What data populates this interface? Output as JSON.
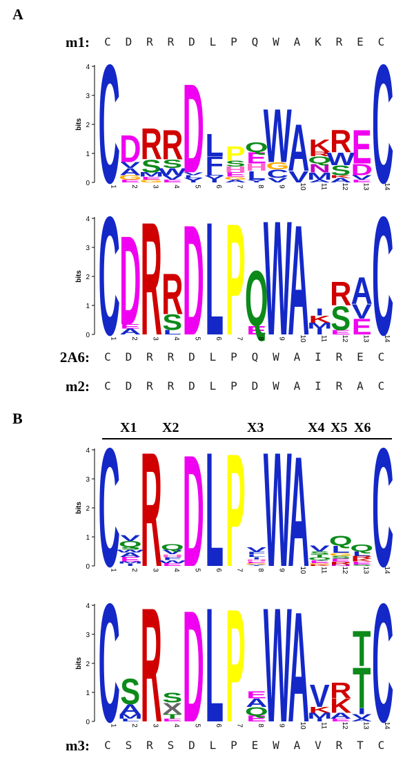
{
  "panels": {
    "a": "A",
    "b": "B"
  },
  "axis": {
    "label": "bits",
    "ticks": [
      "0",
      "1",
      "2",
      "3",
      "4"
    ]
  },
  "colors": {
    "C": "#1428c8",
    "W": "#1428c8",
    "A": "#1428c8",
    "V": "#1428c8",
    "I": "#1428c8",
    "M": "#1428c8",
    "L": "#1428c8",
    "F": "#1428c8",
    "Y": "#1428c8",
    "D": "#f000f0",
    "E": "#f000f0",
    "R": "#d00000",
    "K": "#d00000",
    "H": "#ff66cc",
    "N": "#c000c0",
    "Q": "#0c8a1a",
    "S": "#0c8a1a",
    "T": "#0c8a1a",
    "G": "#ffaa00",
    "P": "#ffff00"
  },
  "sequences": {
    "m1": {
      "label": "m1:",
      "residues": [
        "C",
        "D",
        "R",
        "R",
        "D",
        "L",
        "P",
        "Q",
        "W",
        "A",
        "K",
        "R",
        "E",
        "C"
      ]
    },
    "s2A6": {
      "label": "2A6:",
      "residues": [
        "C",
        "D",
        "R",
        "R",
        "D",
        "L",
        "P",
        "Q",
        "W",
        "A",
        "I",
        "R",
        "E",
        "C"
      ]
    },
    "m2": {
      "label": "m2:",
      "residues": [
        "C",
        "D",
        "R",
        "R",
        "D",
        "L",
        "P",
        "D",
        "W",
        "A",
        "I",
        "R",
        "A",
        "C"
      ]
    },
    "m3": {
      "label": "m3:",
      "residues": [
        "C",
        "S",
        "R",
        "S",
        "D",
        "L",
        "P",
        "E",
        "W",
        "A",
        "V",
        "R",
        "T",
        "C"
      ]
    }
  },
  "bracket": {
    "labels": [
      "X1",
      "X2",
      "X3",
      "X4",
      "X5",
      "X6"
    ]
  },
  "logos": [
    {
      "positions": [
        "1",
        "2",
        "3",
        "4",
        "5",
        "6",
        "7",
        "8",
        "9",
        "10",
        "11",
        "12",
        "13",
        "14"
      ],
      "stacks": [
        [
          [
            "C",
            4.2
          ]
        ],
        [
          [
            "E",
            0.1
          ],
          [
            "G",
            0.15
          ],
          [
            "A",
            0.25
          ],
          [
            "V",
            0.2
          ],
          [
            "D",
            0.95
          ]
        ],
        [
          [
            "G",
            0.1
          ],
          [
            "E",
            0.1
          ],
          [
            "M",
            0.15
          ],
          [
            "S",
            0.45
          ],
          [
            "R",
            1.1
          ]
        ],
        [
          [
            "E",
            0.1
          ],
          [
            "V",
            0.15
          ],
          [
            "W",
            0.25
          ],
          [
            "S",
            0.3
          ],
          [
            "R",
            1.05
          ]
        ],
        [
          [
            "Y",
            0.15
          ],
          [
            "L",
            0.1
          ],
          [
            "V",
            0.1
          ],
          [
            "D",
            3.15
          ]
        ],
        [
          [
            "I",
            0.12
          ],
          [
            "V",
            0.12
          ],
          [
            "L",
            0.12
          ],
          [
            "F",
            0.55
          ],
          [
            "L",
            0.8
          ]
        ],
        [
          [
            "A",
            0.1
          ],
          [
            "G",
            0.1
          ],
          [
            "E",
            0.15
          ],
          [
            "H",
            0.2
          ],
          [
            "S",
            0.2
          ],
          [
            "P",
            0.5
          ]
        ],
        [
          [
            "Y",
            0.1
          ],
          [
            "L",
            0.3
          ],
          [
            "H",
            0.25
          ],
          [
            "E",
            0.4
          ],
          [
            "Q",
            0.35
          ]
        ],
        [
          [
            "V",
            0.15
          ],
          [
            "C",
            0.3
          ],
          [
            "G",
            0.25
          ],
          [
            "W",
            1.9
          ]
        ],
        [
          [
            "V",
            0.4
          ],
          [
            "A",
            1.65
          ]
        ],
        [
          [
            "A",
            0.1
          ],
          [
            "M",
            0.25
          ],
          [
            "N",
            0.3
          ],
          [
            "Q",
            0.25
          ],
          [
            "R",
            0.15
          ],
          [
            "K",
            0.45
          ]
        ],
        [
          [
            "A",
            0.15
          ],
          [
            "K",
            0.1
          ],
          [
            "S",
            0.35
          ],
          [
            "W",
            0.45
          ],
          [
            "R",
            0.8
          ]
        ],
        [
          [
            "E",
            0.1
          ],
          [
            "V",
            0.15
          ],
          [
            "D",
            0.4
          ],
          [
            "E",
            1.2
          ]
        ],
        [
          [
            "C",
            4.2
          ]
        ]
      ]
    },
    {
      "positions": [
        "1",
        "2",
        "3",
        "4",
        "5",
        "6",
        "7",
        "8",
        "9",
        "10",
        "11",
        "12",
        "13",
        "14"
      ],
      "stacks": [
        [
          [
            "C",
            4.2
          ]
        ],
        [
          [
            "A",
            0.2
          ],
          [
            "E",
            0.15
          ],
          [
            "D",
            3.15
          ]
        ],
        [
          [
            "R",
            4.0
          ]
        ],
        [
          [
            "L",
            0.15
          ],
          [
            "S",
            0.55
          ],
          [
            "R",
            1.45
          ]
        ],
        [
          [
            "D",
            3.9
          ]
        ],
        [
          [
            "L",
            4.0
          ]
        ],
        [
          [
            "P",
            3.95
          ]
        ],
        [
          [
            "E",
            0.3
          ],
          [
            "Q",
            1.95
          ]
        ],
        [
          [
            "W",
            4.05
          ]
        ],
        [
          [
            "A",
            3.9
          ]
        ],
        [
          [
            "I",
            0.2
          ],
          [
            "M",
            0.2
          ],
          [
            "K",
            0.25
          ],
          [
            "I",
            0.25
          ]
        ],
        [
          [
            "E",
            0.15
          ],
          [
            "S",
            0.85
          ],
          [
            "R",
            0.85
          ]
        ],
        [
          [
            "E",
            0.55
          ],
          [
            "V",
            0.5
          ],
          [
            "A",
            0.95
          ]
        ],
        [
          [
            "C",
            4.2
          ]
        ]
      ]
    },
    {
      "positions": [
        "1",
        "2",
        "3",
        "4",
        "5",
        "6",
        "7",
        "8",
        "9",
        "10",
        "11",
        "12",
        "13",
        "14"
      ],
      "stacks": [
        [
          [
            "C",
            4.2
          ]
        ],
        [
          [
            "I",
            0.08
          ],
          [
            "M",
            0.08
          ],
          [
            "E",
            0.15
          ],
          [
            "A",
            0.15
          ],
          [
            "W",
            0.1
          ],
          [
            "S",
            0.1
          ],
          [
            "Q",
            0.2
          ],
          [
            "V",
            0.2
          ]
        ],
        [
          [
            "R",
            4.05
          ]
        ],
        [
          [
            "E",
            0.1
          ],
          [
            "W",
            0.1
          ],
          [
            "F",
            0.1
          ],
          [
            "H",
            0.1
          ],
          [
            "V",
            0.15
          ],
          [
            "Q",
            0.2
          ]
        ],
        [
          [
            "D",
            3.95
          ]
        ],
        [
          [
            "L",
            4.05
          ]
        ],
        [
          [
            "P",
            4.0
          ]
        ],
        [
          [
            "Y",
            0.05
          ],
          [
            "G",
            0.05
          ],
          [
            "E",
            0.05
          ],
          [
            "H",
            0.08
          ],
          [
            "I",
            0.08
          ],
          [
            "L",
            0.08
          ],
          [
            "F",
            0.1
          ],
          [
            "V",
            0.15
          ]
        ],
        [
          [
            "W",
            4.05
          ]
        ],
        [
          [
            "A",
            3.9
          ]
        ],
        [
          [
            "K",
            0.05
          ],
          [
            "G",
            0.05
          ],
          [
            "E",
            0.1
          ],
          [
            "Q",
            0.1
          ],
          [
            "T",
            0.1
          ],
          [
            "S",
            0.1
          ],
          [
            "V",
            0.2
          ]
        ],
        [
          [
            "N",
            0.05
          ],
          [
            "R",
            0.1
          ],
          [
            "E",
            0.1
          ],
          [
            "S",
            0.1
          ],
          [
            "G",
            0.1
          ],
          [
            "L",
            0.25
          ],
          [
            "Q",
            0.35
          ]
        ],
        [
          [
            "S",
            0.05
          ],
          [
            "E",
            0.1
          ],
          [
            "K",
            0.1
          ],
          [
            "R",
            0.1
          ],
          [
            "L",
            0.15
          ],
          [
            "Q",
            0.25
          ]
        ],
        [
          [
            "C",
            4.2
          ]
        ]
      ]
    },
    {
      "positions": [
        "1",
        "2",
        "3",
        "4",
        "5",
        "6",
        "7",
        "8",
        "9",
        "10",
        "11",
        "12",
        "13",
        "14"
      ],
      "stacks": [
        [
          [
            "C",
            4.2
          ]
        ],
        [
          [
            "L",
            0.1
          ],
          [
            "M",
            0.15
          ],
          [
            "A",
            0.35
          ],
          [
            "S",
            0.9
          ]
        ],
        [
          [
            "R",
            4.05
          ]
        ],
        [
          [
            "E",
            0.1
          ],
          [
            "T",
            0.15
          ],
          [
            "X",
            0.4
          ],
          [
            "S",
            0.35
          ]
        ],
        [
          [
            "D",
            3.95
          ]
        ],
        [
          [
            "L",
            4.05
          ]
        ],
        [
          [
            "P",
            4.0
          ]
        ],
        [
          [
            "E",
            0.2
          ],
          [
            "Q",
            0.3
          ],
          [
            "A",
            0.3
          ],
          [
            "E",
            0.25
          ]
        ],
        [
          [
            "W",
            4.05
          ]
        ],
        [
          [
            "A",
            3.9
          ]
        ],
        [
          [
            "I",
            0.1
          ],
          [
            "M",
            0.2
          ],
          [
            "K",
            0.2
          ],
          [
            "V",
            0.8
          ]
        ],
        [
          [
            "E",
            0.1
          ],
          [
            "A",
            0.2
          ],
          [
            "K",
            0.5
          ],
          [
            "R",
            0.55
          ]
        ],
        [
          [
            "A",
            0.1
          ],
          [
            "V",
            0.15
          ],
          [
            "I",
            0.2
          ],
          [
            "T",
            1.45
          ],
          [
            "T",
            1.25
          ]
        ],
        [
          [
            "C",
            4.2
          ]
        ]
      ]
    }
  ]
}
